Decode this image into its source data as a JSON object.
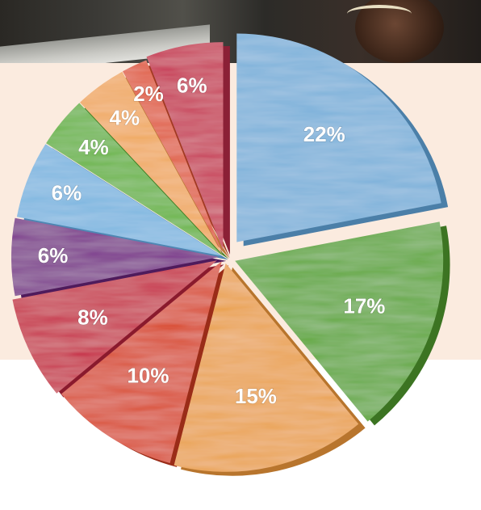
{
  "chart_data": {
    "type": "pie",
    "title": "",
    "legend": "none",
    "slices": [
      {
        "label": "22%",
        "value": 22,
        "color": "#7cb1da",
        "side": "#4b7fa8"
      },
      {
        "label": "17%",
        "value": 17,
        "color": "#5fa739",
        "side": "#3c7422"
      },
      {
        "label": "15%",
        "value": 15,
        "color": "#eaa24e",
        "side": "#b8752d"
      },
      {
        "label": "10%",
        "value": 10,
        "color": "#d9482b",
        "side": "#9a2c18"
      },
      {
        "label": "8%",
        "value": 8,
        "color": "#c72a45",
        "side": "#8a1a2d"
      },
      {
        "label": "6%",
        "value": 6,
        "color": "#7a2e8a",
        "side": "#4f1b5c"
      },
      {
        "label": "6%",
        "value": 6,
        "color": "#7cb6e0",
        "side": "#4e87b3"
      },
      {
        "label": "4%",
        "value": 4,
        "color": "#66b43f",
        "side": "#3f7f25"
      },
      {
        "label": "4%",
        "value": 4,
        "color": "#f0a85b",
        "side": "#bb7836"
      },
      {
        "label": "2%",
        "value": 2,
        "color": "#e05a3a",
        "side": "#a13a22"
      },
      {
        "label": "6%",
        "value": 6,
        "color": "#c73553",
        "side": "#8b2036"
      }
    ]
  }
}
